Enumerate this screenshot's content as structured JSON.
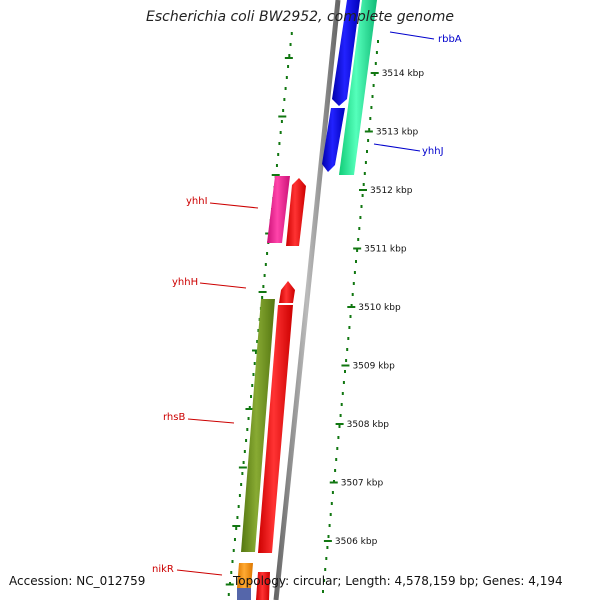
{
  "title": "Escherichia coli BW2952, complete genome",
  "footer": {
    "accession": "Accession: NC_012759",
    "topology": "Topology: circular; Length: 4,578,159 bp; Genes: 4,194"
  },
  "ticks": [
    {
      "kbp": 3514,
      "label": "3514 kbp"
    },
    {
      "kbp": 3513,
      "label": "3513 kbp"
    },
    {
      "kbp": 3512,
      "label": "3512 kbp"
    },
    {
      "kbp": 3511,
      "label": "3511 kbp"
    },
    {
      "kbp": 3510,
      "label": "3510 kbp"
    },
    {
      "kbp": 3509,
      "label": "3509 kbp"
    },
    {
      "kbp": 3508,
      "label": "3508 kbp"
    },
    {
      "kbp": 3507,
      "label": "3507 kbp"
    },
    {
      "kbp": 3506,
      "label": "3506 kbp"
    }
  ],
  "gene_labels": [
    {
      "name": "rbbA",
      "color": "#0000cc"
    },
    {
      "name": "yhhJ",
      "color": "#0000cc"
    },
    {
      "name": "yhhI",
      "color": "#cc0000"
    },
    {
      "name": "yhhH",
      "color": "#cc0000"
    },
    {
      "name": "rhsB",
      "color": "#cc0000"
    },
    {
      "name": "nikR",
      "color": "#cc0000"
    }
  ],
  "colors": {
    "blue_gene": "#0000ee",
    "teal_gene": "#22ee99",
    "red_gene": "#ff0000",
    "magenta_gene": "#ee2299",
    "olive_gene": "#669922",
    "orange_gene": "#ff9900",
    "backbone": "#888888",
    "ticks": "#117711"
  }
}
